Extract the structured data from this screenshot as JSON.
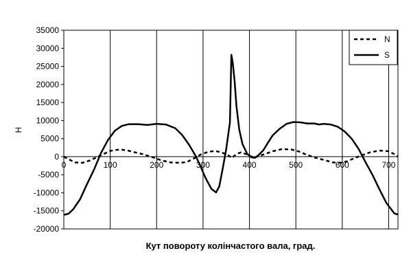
{
  "chart_data": {
    "type": "line",
    "title": "",
    "xlabel": "Кут повороту колінчастого вала, град.",
    "ylabel": "Н",
    "xlim": [
      0,
      720
    ],
    "ylim": [
      -20000,
      35000
    ],
    "x_ticks": [
      0,
      100,
      200,
      300,
      400,
      500,
      600,
      700
    ],
    "y_ticks": [
      -20000,
      -15000,
      -10000,
      -5000,
      0,
      5000,
      10000,
      15000,
      20000,
      25000,
      30000,
      35000
    ],
    "grid": "vertical",
    "legend_position": "top-right",
    "series": [
      {
        "name": "N",
        "style": "dashed",
        "color": "#000000",
        "points": [
          [
            0,
            0
          ],
          [
            10,
            -700
          ],
          [
            25,
            -1600
          ],
          [
            40,
            -1700
          ],
          [
            55,
            -1100
          ],
          [
            70,
            -200
          ],
          [
            85,
            700
          ],
          [
            100,
            1600
          ],
          [
            120,
            2000
          ],
          [
            135,
            1800
          ],
          [
            150,
            1300
          ],
          [
            170,
            700
          ],
          [
            190,
            -100
          ],
          [
            210,
            -1000
          ],
          [
            230,
            -1600
          ],
          [
            250,
            -1700
          ],
          [
            265,
            -1500
          ],
          [
            280,
            -500
          ],
          [
            295,
            600
          ],
          [
            310,
            1300
          ],
          [
            325,
            1600
          ],
          [
            340,
            1200
          ],
          [
            355,
            300
          ],
          [
            362,
            -300
          ],
          [
            368,
            300
          ],
          [
            375,
            900
          ],
          [
            382,
            1200
          ],
          [
            395,
            600
          ],
          [
            410,
            -300
          ],
          [
            420,
            200
          ],
          [
            435,
            800
          ],
          [
            450,
            1500
          ],
          [
            470,
            2100
          ],
          [
            490,
            2000
          ],
          [
            505,
            1500
          ],
          [
            520,
            700
          ],
          [
            540,
            -200
          ],
          [
            560,
            -900
          ],
          [
            580,
            -1600
          ],
          [
            595,
            -1700
          ],
          [
            610,
            -1300
          ],
          [
            625,
            -500
          ],
          [
            640,
            300
          ],
          [
            660,
            1200
          ],
          [
            680,
            1700
          ],
          [
            700,
            1500
          ],
          [
            712,
            700
          ],
          [
            720,
            0
          ]
        ]
      },
      {
        "name": "S",
        "style": "solid",
        "color": "#000000",
        "points": [
          [
            0,
            -16100
          ],
          [
            10,
            -15800
          ],
          [
            20,
            -14600
          ],
          [
            35,
            -11800
          ],
          [
            50,
            -7600
          ],
          [
            65,
            -3600
          ],
          [
            80,
            1000
          ],
          [
            95,
            4600
          ],
          [
            110,
            7200
          ],
          [
            125,
            8500
          ],
          [
            140,
            9000
          ],
          [
            160,
            9000
          ],
          [
            180,
            8800
          ],
          [
            200,
            9100
          ],
          [
            220,
            8900
          ],
          [
            240,
            7900
          ],
          [
            255,
            6000
          ],
          [
            270,
            3300
          ],
          [
            285,
            0
          ],
          [
            295,
            -2800
          ],
          [
            305,
            -5800
          ],
          [
            318,
            -8900
          ],
          [
            328,
            -9900
          ],
          [
            335,
            -8200
          ],
          [
            342,
            -3600
          ],
          [
            350,
            2100
          ],
          [
            358,
            9500
          ],
          [
            361,
            28200
          ],
          [
            364,
            26000
          ],
          [
            368,
            21000
          ],
          [
            372,
            14000
          ],
          [
            378,
            7500
          ],
          [
            385,
            3500
          ],
          [
            395,
            800
          ],
          [
            405,
            -200
          ],
          [
            412,
            -300
          ],
          [
            420,
            500
          ],
          [
            430,
            1800
          ],
          [
            440,
            3900
          ],
          [
            450,
            5900
          ],
          [
            465,
            7700
          ],
          [
            480,
            9100
          ],
          [
            495,
            9600
          ],
          [
            510,
            9500
          ],
          [
            525,
            9200
          ],
          [
            540,
            9200
          ],
          [
            550,
            8900
          ],
          [
            560,
            9100
          ],
          [
            575,
            8900
          ],
          [
            590,
            8300
          ],
          [
            605,
            7000
          ],
          [
            620,
            5000
          ],
          [
            635,
            2200
          ],
          [
            650,
            -1500
          ],
          [
            665,
            -5000
          ],
          [
            680,
            -9000
          ],
          [
            695,
            -12800
          ],
          [
            705,
            -14500
          ],
          [
            712,
            -15700
          ],
          [
            720,
            -16000
          ]
        ]
      }
    ]
  }
}
